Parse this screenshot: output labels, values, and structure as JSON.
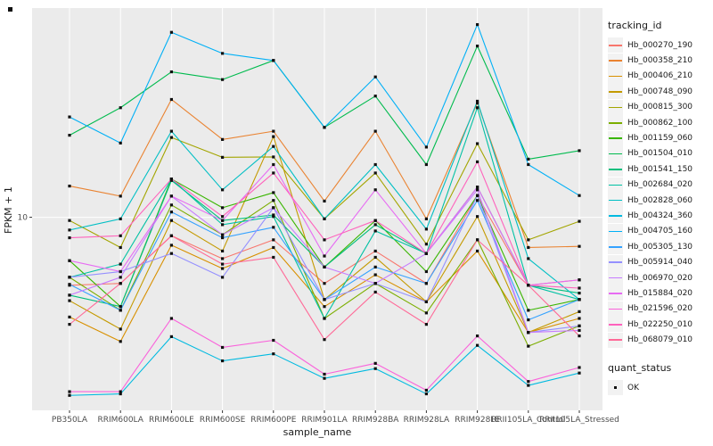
{
  "chart_data": {
    "type": "line",
    "title": "",
    "xlabel": "sample_name",
    "ylabel": "FPKM + 1",
    "y_scale": "log10",
    "y_ticks": [
      10
    ],
    "y_tick_labels": [
      "10"
    ],
    "y_domain_log10": [
      -0.07,
      2.16
    ],
    "grid": "vertical-major-and-y10",
    "legend_position": "right",
    "legend_title": "tracking_id",
    "legend2": {
      "title": "quant_status",
      "items": [
        {
          "label": "OK",
          "marker": "black-square"
        }
      ]
    },
    "point_marker": "small-black-square",
    "categories": [
      "PB350LA",
      "RRIM600LA",
      "RRIM600LE",
      "RRIM600SE",
      "RRIM600PE",
      "RRIM901LA",
      "RRIM928BA",
      "RRIM928LA",
      "RRIM928LE",
      "RRII105LA_Control",
      "RRII105LA_Stressed"
    ],
    "series": [
      {
        "name": "Hb_000270_190",
        "color": "#F8766D",
        "values": [
          4.2,
          4.3,
          7.9,
          5.9,
          7.5,
          4.3,
          6.5,
          4.3,
          13.2,
          4.2,
          4.5
        ]
      },
      {
        "name": "Hb_000358_210",
        "color": "#EA8331",
        "values": [
          14.9,
          13.1,
          45,
          27,
          30,
          12.3,
          30,
          9.8,
          43,
          6.8,
          6.9
        ]
      },
      {
        "name": "Hb_000406_210",
        "color": "#D89000",
        "values": [
          2.8,
          2.05,
          7.0,
          5.2,
          6.8,
          3.2,
          4.8,
          3.4,
          6.5,
          2.3,
          2.75
        ]
      },
      {
        "name": "Hb_000748_090",
        "color": "#C49A00",
        "values": [
          3.45,
          2.4,
          9.6,
          6.5,
          28,
          3.5,
          6.0,
          3.4,
          10.1,
          2.3,
          3.0
        ]
      },
      {
        "name": "Hb_000815_300",
        "color": "#A3A500",
        "values": [
          9.6,
          6.8,
          27.7,
          21.5,
          21.6,
          9.8,
          17.6,
          7.1,
          25.6,
          7.5,
          9.5
        ]
      },
      {
        "name": "Hb_000862_100",
        "color": "#7CAE00",
        "values": [
          4.65,
          3.05,
          11.7,
          8.0,
          12.4,
          2.75,
          4.3,
          2.95,
          7.5,
          1.93,
          2.5
        ]
      },
      {
        "name": "Hb_001159_060",
        "color": "#39B600",
        "values": [
          5.75,
          3.2,
          16.3,
          11.3,
          13.7,
          5.3,
          9.6,
          5.0,
          13.2,
          3.05,
          3.5
        ]
      },
      {
        "name": "Hb_001504_010",
        "color": "#00BB4E",
        "values": [
          28.5,
          40.5,
          64,
          58,
          74,
          31.5,
          47,
          19.6,
          89,
          21,
          23.4
        ]
      },
      {
        "name": "Hb_001541_150",
        "color": "#00BF7D",
        "values": [
          3.7,
          3.2,
          16,
          9.6,
          10.3,
          5.3,
          9.1,
          6.3,
          14.7,
          4.2,
          3.8
        ]
      },
      {
        "name": "Hb_002684_020",
        "color": "#00C1A3",
        "values": [
          4.65,
          5.5,
          16.3,
          9.1,
          10.1,
          2.75,
          8.4,
          6.3,
          40.5,
          4.2,
          3.5
        ]
      },
      {
        "name": "Hb_002828_060",
        "color": "#00BFC4",
        "values": [
          8.5,
          9.8,
          30,
          14.2,
          24.7,
          9.8,
          19.6,
          8.6,
          44,
          5.9,
          3.5
        ]
      },
      {
        "name": "Hb_004324_360",
        "color": "#00BAE0",
        "values": [
          1.03,
          1.05,
          2.18,
          1.6,
          1.75,
          1.28,
          1.45,
          1.05,
          1.95,
          1.17,
          1.37
        ]
      },
      {
        "name": "Hb_004705_160",
        "color": "#00B0F6",
        "values": [
          36,
          25.8,
          106,
          81,
          74,
          31.5,
          60,
          24.5,
          117,
          19.6,
          13.2
        ]
      },
      {
        "name": "Hb_005305_130",
        "color": "#35A2FF",
        "values": [
          4.25,
          3.05,
          10.7,
          7.7,
          8.8,
          3.5,
          5.3,
          4.3,
          12.4,
          2.7,
          3.5
        ]
      },
      {
        "name": "Hb_005914_040",
        "color": "#9590FF",
        "values": [
          4.65,
          5.0,
          6.3,
          4.65,
          11.3,
          3.5,
          4.3,
          3.4,
          13.2,
          2.3,
          2.5
        ]
      },
      {
        "name": "Hb_006970_020",
        "color": "#C77CFF",
        "values": [
          3.7,
          4.65,
          13.1,
          8.0,
          11.3,
          5.3,
          4.3,
          6.3,
          14.2,
          2.3,
          2.36
        ]
      },
      {
        "name": "Hb_015884_020",
        "color": "#E76BF3",
        "values": [
          5.75,
          5.0,
          13.1,
          9.6,
          19.6,
          6.1,
          14.2,
          6.3,
          14.7,
          4.2,
          4.5
        ]
      },
      {
        "name": "Hb_021596_020",
        "color": "#FA62DB",
        "values": [
          1.08,
          1.08,
          2.75,
          1.9,
          2.08,
          1.35,
          1.55,
          1.1,
          2.2,
          1.23,
          1.47
        ]
      },
      {
        "name": "Hb_022250_010",
        "color": "#FF62BC",
        "values": [
          7.7,
          7.9,
          16.3,
          10.1,
          17.6,
          7.5,
          9.6,
          6.3,
          20.3,
          4.2,
          4.05
        ]
      },
      {
        "name": "Hb_068079_010",
        "color": "#FF6A98",
        "values": [
          2.55,
          4.3,
          7.9,
          5.5,
          6.0,
          2.1,
          3.85,
          2.55,
          7.5,
          4.2,
          2.2
        ]
      }
    ],
    "colors": {
      "panel_background": "#EBEBEB",
      "gridline": "#FFFFFF",
      "tick_label": "#4D4D4D",
      "tick_mark": "#333333",
      "point": "#101010",
      "legend_key_background": "#F2F2F2"
    }
  }
}
